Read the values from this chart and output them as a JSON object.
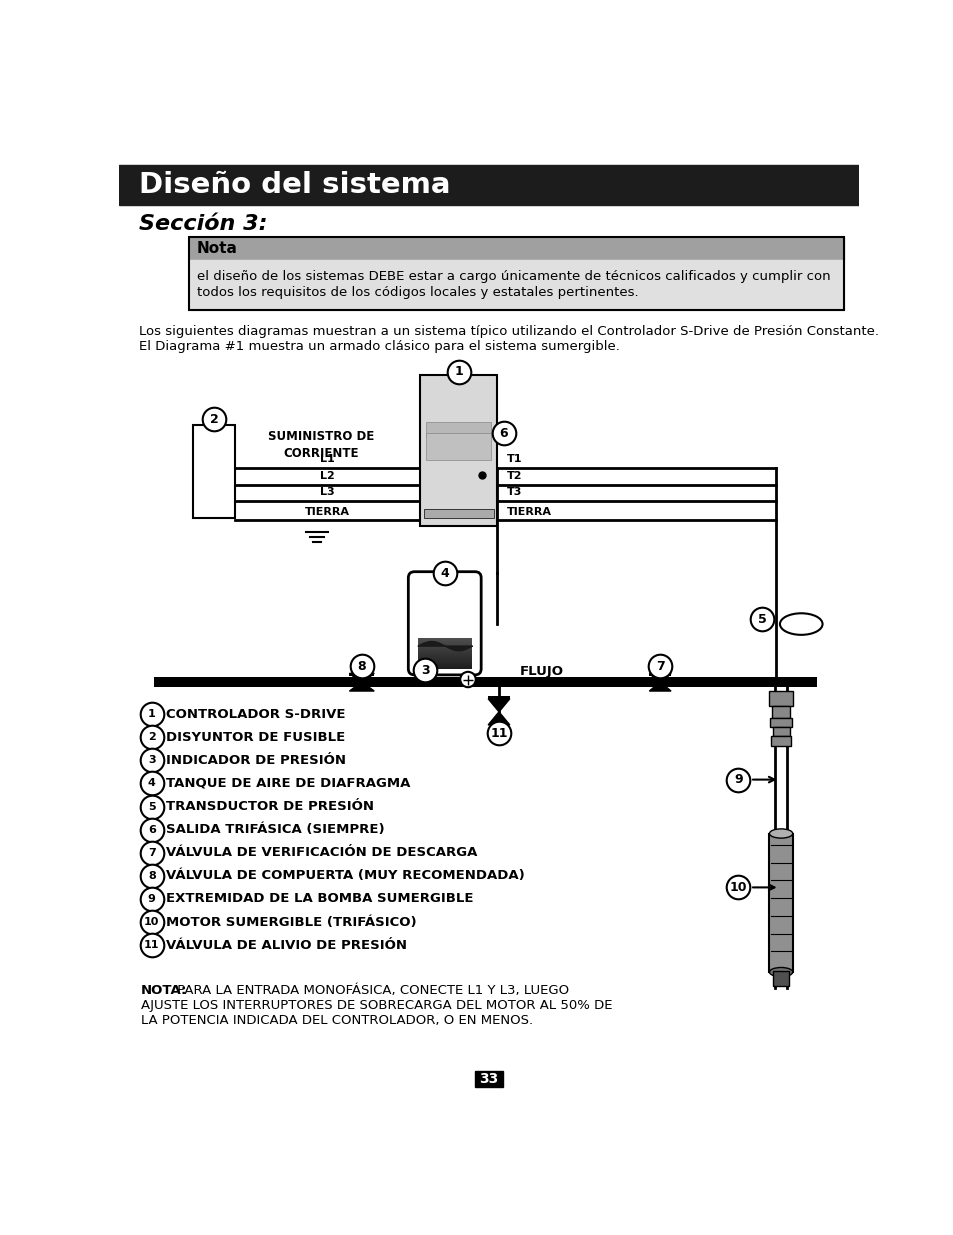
{
  "title": "Diseño del sistema",
  "section": "Sección 3:",
  "nota_header": "Nota",
  "nota_text_line1": "el diseño de los sistemas DEBE estar a cargo únicamente de técnicos calificados y cumplir con",
  "nota_text_line2": "todos los requisitos de los códigos locales y estatales pertinentes.",
  "intro_line1": "Los siguientes diagramas muestran a un sistema típico utilizando el Controlador S-Drive de Presión Constante.",
  "intro_line2": "El Diagrama #1 muestra un armado clásico para el sistema sumergible.",
  "labels": [
    "CONTROLADOR S-DRIVE",
    "DISYUNTOR DE FUSIBLE",
    "INDICADOR DE PRESIÓN",
    "TANQUE DE AIRE DE DIAFRAGMA",
    "TRANSDUCTOR DE PRESIÓN",
    "SALIDA TRIFÁSICA (SIEMPRE)",
    "VÁLVULA DE VERIFICACIÓN DE DESCARGA",
    "VÁLVULA DE COMPUERTA (MUY RECOMENDADA)",
    "EXTREMIDAD DE LA BOMBA SUMERGIBLE",
    "MOTOR SUMERGIBLE (TRIFÁSICO)",
    "VÁLVULA DE ALIVIO DE PRESIÓN"
  ],
  "nota_bold": "NOTA:",
  "nota_text2_rest": " PARA LA ENTRADA MONOFÁSICA, CONECTE L1 Y L3, LUEGO",
  "nota_text2_line2": "AJUSTE LOS INTERRUPTORES DE SOBRECARGA DEL MOTOR AL 50% DE",
  "nota_text2_line3": "LA POTENCIA INDICADA DEL CONTROLADOR, O EN MENOS.",
  "page": "33",
  "bg_color": "#ffffff",
  "title_bg": "#1c1c1c",
  "title_color": "#ffffff",
  "nota_header_bg": "#a0a0a0",
  "nota_body_bg": "#e0e0e0",
  "border_color": "#000000",
  "text_color": "#000000",
  "supply_labels_left": [
    "L1",
    "L2",
    "L3",
    "TIERRA"
  ],
  "supply_labels_right": [
    "T1",
    "T2",
    "T3",
    "TIERRA"
  ],
  "supply_header": "SUMINISTRO DE\nCORRIENTE",
  "flujo_label": "FLUJO"
}
